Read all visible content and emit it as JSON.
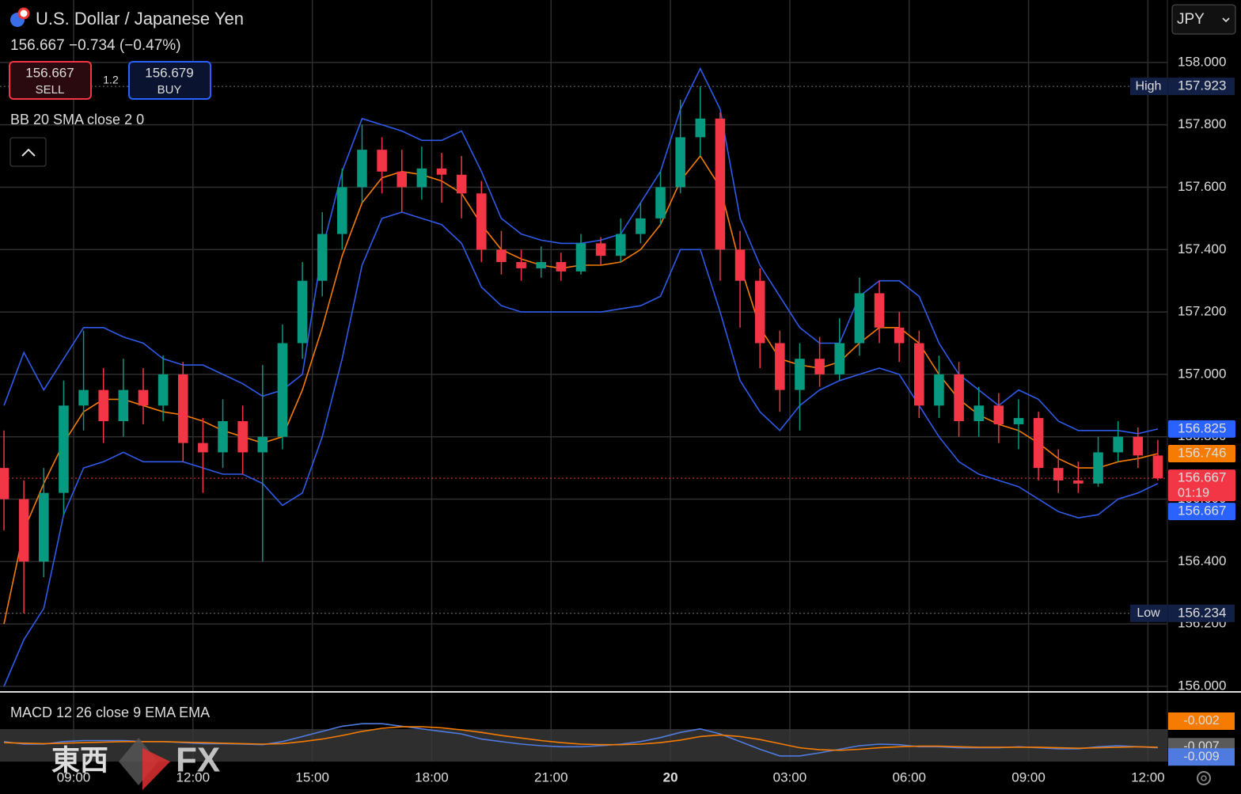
{
  "header": {
    "symbol": "U.S. Dollar / Japanese Yen",
    "price": "156.667",
    "change": "−0.734",
    "change_pct": "(−0.47%)",
    "sell": {
      "price": "156.667",
      "label": "SELL"
    },
    "spread": "1.2",
    "buy": {
      "price": "156.679",
      "label": "BUY"
    },
    "indicator": "BB 20 SMA close 2 0",
    "currency": "JPY"
  },
  "watermark": {
    "left": "東西",
    "right": "FX"
  },
  "chart_data": {
    "type": "candlestick",
    "x": [
      7.25,
      7.75,
      8.25,
      8.75,
      9.25,
      9.75,
      10.25,
      10.75,
      11.25,
      11.75,
      12.25,
      12.75,
      13.25,
      13.75,
      14.25,
      14.75,
      15.25,
      15.75,
      16.25,
      16.75,
      17.25,
      17.75,
      18.25,
      18.75,
      19.25,
      19.75,
      20.25,
      20.75,
      21.25,
      21.75,
      22.25,
      22.75,
      23.25,
      23.75,
      24.25,
      24.75,
      25.25,
      25.75,
      26.25,
      26.75,
      27.25,
      27.75,
      28.25,
      28.75,
      29.25,
      29.75,
      30.25,
      30.75,
      31.25,
      31.75,
      32.25,
      32.75,
      33.25,
      33.75,
      34.25,
      34.75,
      35.25,
      35.75,
      36.25
    ],
    "open": [
      156.7,
      156.6,
      156.4,
      156.62,
      156.9,
      156.95,
      156.85,
      156.95,
      156.9,
      157.0,
      156.78,
      156.75,
      156.85,
      156.75,
      156.8,
      157.1,
      157.3,
      157.45,
      157.6,
      157.72,
      157.65,
      157.6,
      157.66,
      157.64,
      157.58,
      157.4,
      157.36,
      157.34,
      157.36,
      157.33,
      157.42,
      157.38,
      157.45,
      157.5,
      157.6,
      157.76,
      157.82,
      157.4,
      157.3,
      157.1,
      156.95,
      157.05,
      157.0,
      157.1,
      157.26,
      157.15,
      157.1,
      156.9,
      157.0,
      156.85,
      156.9,
      156.84,
      156.86,
      156.7,
      156.66,
      156.65,
      156.75,
      156.8,
      156.74
    ],
    "high": [
      156.82,
      156.66,
      156.7,
      156.98,
      157.14,
      157.02,
      157.05,
      157.02,
      157.06,
      157.04,
      156.86,
      156.92,
      156.9,
      157.03,
      157.16,
      157.36,
      157.52,
      157.66,
      157.8,
      157.76,
      157.72,
      157.73,
      157.71,
      157.7,
      157.62,
      157.46,
      157.4,
      157.41,
      157.39,
      157.45,
      157.44,
      157.5,
      157.55,
      157.65,
      157.88,
      157.923,
      157.84,
      157.46,
      157.34,
      157.14,
      157.1,
      157.12,
      157.18,
      157.31,
      157.3,
      157.2,
      157.14,
      157.06,
      157.04,
      156.96,
      156.94,
      156.92,
      156.88,
      156.76,
      156.72,
      156.8,
      156.85,
      156.83,
      156.79
    ],
    "low": [
      156.5,
      156.234,
      156.35,
      156.55,
      156.82,
      156.78,
      156.8,
      156.84,
      156.85,
      156.72,
      156.62,
      156.7,
      156.68,
      156.4,
      156.76,
      157.05,
      157.25,
      157.4,
      157.55,
      157.58,
      157.52,
      157.56,
      157.55,
      157.5,
      157.36,
      157.32,
      157.3,
      157.31,
      157.3,
      157.32,
      157.35,
      157.36,
      157.42,
      157.48,
      157.58,
      157.7,
      157.3,
      157.15,
      157.02,
      156.88,
      156.82,
      156.96,
      156.98,
      157.06,
      157.1,
      157.04,
      156.86,
      156.86,
      156.8,
      156.8,
      156.78,
      156.76,
      156.66,
      156.62,
      156.62,
      156.64,
      156.72,
      156.7,
      156.66
    ],
    "close": [
      156.6,
      156.4,
      156.62,
      156.9,
      156.95,
      156.85,
      156.95,
      156.9,
      157.0,
      156.78,
      156.75,
      156.85,
      156.75,
      156.8,
      157.1,
      157.3,
      157.45,
      157.6,
      157.72,
      157.65,
      157.6,
      157.66,
      157.64,
      157.58,
      157.4,
      157.36,
      157.34,
      157.36,
      157.33,
      157.42,
      157.38,
      157.45,
      157.5,
      157.6,
      157.76,
      157.82,
      157.4,
      157.3,
      157.1,
      156.95,
      157.05,
      157.0,
      157.1,
      157.26,
      157.15,
      157.1,
      156.9,
      157.0,
      156.85,
      156.9,
      156.84,
      156.86,
      156.7,
      156.66,
      156.65,
      156.75,
      156.8,
      156.74,
      156.667
    ],
    "up_color": "#089981",
    "down_color": "#f23645",
    "bands": [
      {
        "color": "#2f5bea",
        "values": [
          156.9,
          157.07,
          156.95,
          157.05,
          157.15,
          157.15,
          157.12,
          157.1,
          157.05,
          157.03,
          157.03,
          157.0,
          156.97,
          156.93,
          156.95,
          157.0,
          157.4,
          157.65,
          157.82,
          157.8,
          157.78,
          157.75,
          157.75,
          157.78,
          157.65,
          157.5,
          157.45,
          157.43,
          157.42,
          157.42,
          157.43,
          157.45,
          157.55,
          157.65,
          157.85,
          157.98,
          157.85,
          157.5,
          157.35,
          157.25,
          157.15,
          157.1,
          157.1,
          157.25,
          157.3,
          157.3,
          157.25,
          157.1,
          157.0,
          156.95,
          156.9,
          156.95,
          156.92,
          156.85,
          156.82,
          156.82,
          156.82,
          156.81,
          156.825
        ]
      },
      {
        "color": "#f57c00",
        "values": [
          156.2,
          156.5,
          156.65,
          156.78,
          156.88,
          156.92,
          156.92,
          156.9,
          156.88,
          156.87,
          156.85,
          156.82,
          156.8,
          156.78,
          156.8,
          156.95,
          157.15,
          157.38,
          157.55,
          157.63,
          157.65,
          157.64,
          157.62,
          157.58,
          157.48,
          157.4,
          157.37,
          157.35,
          157.34,
          157.35,
          157.35,
          157.36,
          157.4,
          157.48,
          157.62,
          157.7,
          157.6,
          157.35,
          157.15,
          157.05,
          157.03,
          157.02,
          157.04,
          157.1,
          157.15,
          157.15,
          157.1,
          157.0,
          156.92,
          156.87,
          156.84,
          156.82,
          156.78,
          156.73,
          156.7,
          156.7,
          156.72,
          156.73,
          156.746
        ]
      },
      {
        "color": "#2f5bea",
        "values": [
          156.0,
          156.15,
          156.25,
          156.55,
          156.7,
          156.72,
          156.75,
          156.72,
          156.72,
          156.72,
          156.7,
          156.68,
          156.68,
          156.65,
          156.58,
          156.62,
          156.8,
          157.05,
          157.35,
          157.5,
          157.52,
          157.5,
          157.48,
          157.42,
          157.28,
          157.22,
          157.2,
          157.2,
          157.2,
          157.2,
          157.2,
          157.21,
          157.22,
          157.25,
          157.4,
          157.4,
          157.2,
          156.98,
          156.88,
          156.82,
          156.9,
          156.95,
          156.98,
          157.0,
          157.02,
          157.0,
          156.9,
          156.8,
          156.72,
          156.68,
          156.66,
          156.64,
          156.6,
          156.56,
          156.54,
          156.55,
          156.6,
          156.62,
          156.65
        ]
      }
    ],
    "xlim": [
      7.15,
      36.49
    ],
    "xticks": [
      {
        "value": 9,
        "label": "09:00"
      },
      {
        "value": 12,
        "label": "12:00"
      },
      {
        "value": 15,
        "label": "15:00"
      },
      {
        "value": 18,
        "label": "18:00"
      },
      {
        "value": 21,
        "label": "21:00"
      },
      {
        "value": 24,
        "label": "20"
      },
      {
        "value": 27,
        "label": "03:00"
      },
      {
        "value": 30,
        "label": "06:00"
      },
      {
        "value": 33,
        "label": "09:00"
      },
      {
        "value": 36,
        "label": "12:00"
      }
    ],
    "ylim": [
      156.0,
      158.2
    ],
    "yticks": [
      {
        "value": 156,
        "label": "156.000"
      },
      {
        "value": 156.2,
        "label": "156.200"
      },
      {
        "value": 156.4,
        "label": "156.400"
      },
      {
        "value": 156.6,
        "label": "156.600"
      },
      {
        "value": 156.8,
        "label": "156.800"
      },
      {
        "value": 157,
        "label": "157.000"
      },
      {
        "value": 157.2,
        "label": "157.200"
      },
      {
        "value": 157.4,
        "label": "157.400"
      },
      {
        "value": 157.6,
        "label": "157.600"
      },
      {
        "value": 157.8,
        "label": "157.800"
      },
      {
        "value": 158,
        "label": "158.000"
      }
    ],
    "grid": true,
    "extremes": [
      {
        "label": "High",
        "value": 157.923
      },
      {
        "label": "Low",
        "value": 156.234
      }
    ],
    "last_price": 156.667,
    "price_markers": [
      {
        "value": 156.825,
        "color": "#2962ff"
      },
      {
        "value": 156.746,
        "color": "#f57c00"
      },
      {
        "value": 156.667,
        "color": "#f23645",
        "sub": "01:19"
      },
      {
        "value": 156.667,
        "color": "#2962ff"
      }
    ],
    "macd": {
      "title": "MACD 12 26 close 9 EMA EMA",
      "ylim": [
        -0.0099,
        0.0028
      ],
      "series": [
        {
          "color": "#4f7be0",
          "values": [
            -0.006,
            -0.0065,
            -0.0065,
            -0.006,
            -0.0058,
            -0.0058,
            -0.0058,
            -0.006,
            -0.006,
            -0.0062,
            -0.0064,
            -0.0064,
            -0.0065,
            -0.0066,
            -0.006,
            -0.005,
            -0.004,
            -0.003,
            -0.0025,
            -0.0025,
            -0.003,
            -0.0035,
            -0.004,
            -0.0045,
            -0.0055,
            -0.006,
            -0.0065,
            -0.0068,
            -0.007,
            -0.007,
            -0.0068,
            -0.0065,
            -0.006,
            -0.0052,
            -0.0042,
            -0.0035,
            -0.0045,
            -0.006,
            -0.0075,
            -0.0088,
            -0.0088,
            -0.0082,
            -0.0075,
            -0.0068,
            -0.0065,
            -0.0066,
            -0.007,
            -0.007,
            -0.0072,
            -0.0072,
            -0.0072,
            -0.007,
            -0.0072,
            -0.0074,
            -0.0074,
            -0.007,
            -0.0068,
            -0.007,
            -0.0072
          ]
        },
        {
          "color": "#f57c00",
          "values": [
            -0.0062,
            -0.0063,
            -0.0064,
            -0.0063,
            -0.0062,
            -0.0061,
            -0.006,
            -0.006,
            -0.006,
            -0.0061,
            -0.0062,
            -0.0063,
            -0.0064,
            -0.0065,
            -0.0064,
            -0.006,
            -0.0055,
            -0.0048,
            -0.004,
            -0.0034,
            -0.0031,
            -0.0031,
            -0.0033,
            -0.0037,
            -0.0042,
            -0.0048,
            -0.0053,
            -0.0058,
            -0.0062,
            -0.0065,
            -0.0066,
            -0.0066,
            -0.0065,
            -0.0062,
            -0.0057,
            -0.005,
            -0.0047,
            -0.005,
            -0.0056,
            -0.0064,
            -0.0072,
            -0.0076,
            -0.0077,
            -0.0075,
            -0.0072,
            -0.007,
            -0.0069,
            -0.0069,
            -0.007,
            -0.0071,
            -0.0071,
            -0.0071,
            -0.0071,
            -0.0072,
            -0.0073,
            -0.0072,
            -0.0071,
            -0.007,
            -0.0071
          ]
        }
      ],
      "markers": [
        {
          "value": -0.002,
          "color": "#f57c00"
        },
        {
          "value": -0.007,
          "color": "#5a5a5a"
        },
        {
          "value": -0.009,
          "color": "#4f7be0"
        }
      ]
    }
  }
}
